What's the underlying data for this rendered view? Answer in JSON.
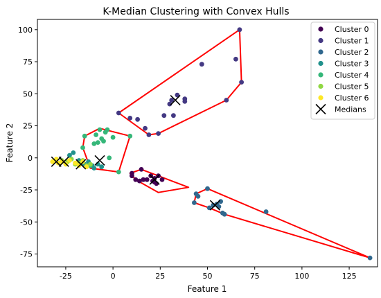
{
  "chart_data": {
    "type": "scatter",
    "title": "K-Median Clustering with Convex Hulls",
    "xlabel": "Feature 1",
    "ylabel": "Feature 2",
    "xlim": [
      -40,
      140
    ],
    "ylim": [
      -85,
      108
    ],
    "xticks": [
      -25,
      0,
      25,
      50,
      75,
      100,
      125
    ],
    "yticks": [
      -75,
      -50,
      -25,
      0,
      25,
      50,
      75,
      100
    ],
    "grid": false,
    "legend_position": "top-right",
    "hull_color": "#ff0000",
    "series": [
      {
        "name": "Cluster 0",
        "color": "#440154",
        "points": [
          [
            10,
            -12
          ],
          [
            12,
            -17
          ],
          [
            14,
            -18
          ],
          [
            15,
            -9
          ],
          [
            18,
            -17
          ],
          [
            20,
            -14
          ],
          [
            21,
            -18
          ],
          [
            22,
            -16
          ],
          [
            22,
            -19
          ],
          [
            23,
            -20
          ],
          [
            24,
            -14
          ],
          [
            26,
            -17
          ],
          [
            10,
            -14
          ],
          [
            16,
            -17
          ]
        ],
        "hull": [
          [
            9,
            -12
          ],
          [
            15,
            -9
          ],
          [
            40,
            -23
          ],
          [
            24,
            -27
          ],
          [
            12,
            -17
          ]
        ]
      },
      {
        "name": "Cluster 1",
        "color": "#443983",
        "points": [
          [
            3,
            35
          ],
          [
            9,
            31
          ],
          [
            13,
            30
          ],
          [
            17,
            23
          ],
          [
            19,
            18
          ],
          [
            24,
            19
          ],
          [
            27,
            33
          ],
          [
            30,
            42
          ],
          [
            31,
            45
          ],
          [
            32,
            33
          ],
          [
            34,
            49
          ],
          [
            38,
            44
          ],
          [
            38,
            46
          ],
          [
            47,
            73
          ],
          [
            65,
            77
          ],
          [
            67,
            100
          ],
          [
            68,
            59
          ],
          [
            60,
            45
          ]
        ],
        "hull": [
          [
            3,
            35
          ],
          [
            67,
            100
          ],
          [
            68,
            59
          ],
          [
            60,
            45
          ],
          [
            24,
            19
          ],
          [
            19,
            18
          ]
        ]
      },
      {
        "name": "Cluster 2",
        "color": "#31688e",
        "points": [
          [
            43,
            -35
          ],
          [
            44,
            -28
          ],
          [
            45,
            -30
          ],
          [
            50,
            -24
          ],
          [
            51,
            -39
          ],
          [
            53,
            -37
          ],
          [
            55,
            -36
          ],
          [
            56,
            -38
          ],
          [
            57,
            -34
          ],
          [
            58,
            -43
          ],
          [
            59,
            -44
          ],
          [
            81,
            -42
          ],
          [
            136,
            -78
          ]
        ],
        "hull": [
          [
            50,
            -24
          ],
          [
            136,
            -78
          ],
          [
            59,
            -44
          ],
          [
            51,
            -39
          ],
          [
            43,
            -35
          ],
          [
            44,
            -28
          ]
        ]
      },
      {
        "name": "Cluster 3",
        "color": "#21918c",
        "points": [
          [
            -23,
            2
          ],
          [
            -21,
            4
          ],
          [
            -18,
            -2
          ],
          [
            -17,
            -4
          ],
          [
            -15,
            -5
          ],
          [
            -13,
            -3
          ],
          [
            -11,
            -6
          ],
          [
            -10,
            -8
          ],
          [
            -8,
            -5
          ],
          [
            -6,
            -7
          ]
        ],
        "hull": []
      },
      {
        "name": "Cluster 4",
        "color": "#35b779",
        "points": [
          [
            -16,
            8
          ],
          [
            -15,
            17
          ],
          [
            -12,
            -6
          ],
          [
            -10,
            11
          ],
          [
            -9,
            18
          ],
          [
            -8,
            12
          ],
          [
            -7,
            22
          ],
          [
            -6,
            15
          ],
          [
            -5,
            13
          ],
          [
            -4,
            20
          ],
          [
            -3,
            22
          ],
          [
            -2,
            0
          ],
          [
            0,
            16
          ],
          [
            3,
            -11
          ],
          [
            9,
            17
          ]
        ],
        "hull": [
          [
            -15,
            17
          ],
          [
            -7,
            23
          ],
          [
            9,
            17
          ],
          [
            3,
            -11
          ],
          [
            -12,
            -8
          ],
          [
            -16,
            8
          ]
        ]
      },
      {
        "name": "Cluster 5",
        "color": "#90d743",
        "points": [
          [
            -27,
            -2
          ],
          [
            -24,
            -3
          ],
          [
            -22,
            -1
          ],
          [
            -20,
            -5
          ],
          [
            -18,
            -4
          ],
          [
            -16,
            -2
          ],
          [
            -14,
            -6
          ],
          [
            -12,
            -5
          ]
        ],
        "hull": []
      },
      {
        "name": "Cluster 6",
        "color": "#fde725",
        "points": [
          [
            -32,
            -3
          ],
          [
            -30,
            -1
          ],
          [
            -29,
            -4
          ],
          [
            -27,
            -3
          ],
          [
            -25,
            -5
          ],
          [
            -23,
            -2
          ],
          [
            -20,
            -4
          ],
          [
            -18,
            -6
          ],
          [
            -16,
            -3
          ],
          [
            -14,
            -7
          ]
        ],
        "hull": []
      }
    ],
    "medians": {
      "name": "Medians",
      "points": [
        [
          -30,
          -3
        ],
        [
          -26,
          -3
        ],
        [
          -17,
          -5
        ],
        [
          -7,
          -2
        ],
        [
          22,
          -17
        ],
        [
          33,
          45
        ],
        [
          54,
          -37
        ]
      ]
    }
  }
}
